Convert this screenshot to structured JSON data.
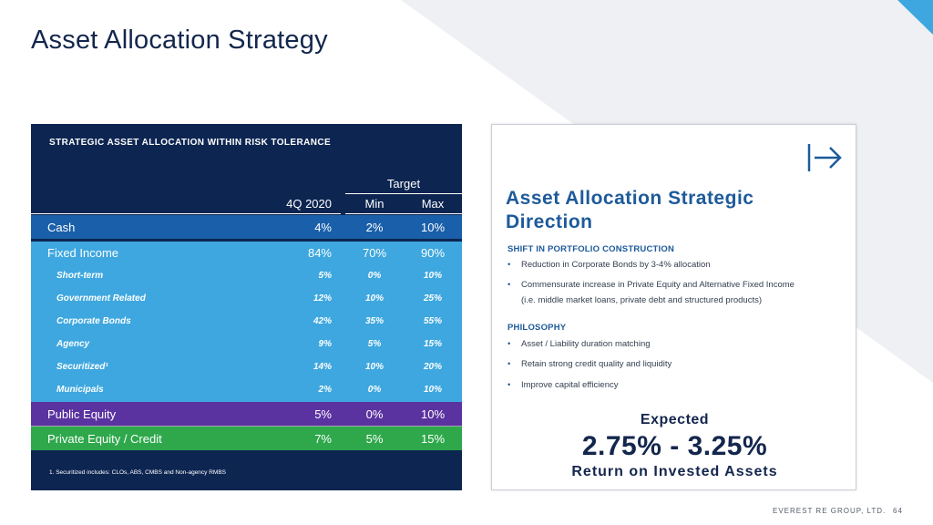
{
  "title": "Asset Allocation Strategy",
  "theme": {
    "navy": "#0d2551",
    "cash": "#1a5faa",
    "fixed_income": "#3ea7df",
    "public_equity": "#5b33a0",
    "private_equity": "#2ea84b",
    "accent": "#1d5a9a"
  },
  "table": {
    "heading": "STRATEGIC ASSET ALLOCATION WITHIN RISK TOLERANCE",
    "target_label": "Target",
    "columns": {
      "current": "4Q 2020",
      "min": "Min",
      "max": "Max"
    },
    "rows": [
      {
        "label": "Cash",
        "current": "4%",
        "min": "2%",
        "max": "10%"
      },
      {
        "label": "Fixed Income",
        "current": "84%",
        "min": "70%",
        "max": "90%"
      },
      {
        "label": "Short-term",
        "current": "5%",
        "min": "0%",
        "max": "10%"
      },
      {
        "label": "Government Related",
        "current": "12%",
        "min": "10%",
        "max": "25%"
      },
      {
        "label": "Corporate Bonds",
        "current": "42%",
        "min": "35%",
        "max": "55%"
      },
      {
        "label": "Agency",
        "current": "9%",
        "min": "5%",
        "max": "15%"
      },
      {
        "label": "Securitized¹",
        "current": "14%",
        "min": "10%",
        "max": "20%"
      },
      {
        "label": "Municipals",
        "current": "2%",
        "min": "0%",
        "max": "10%"
      },
      {
        "label": "Public Equity",
        "current": "5%",
        "min": "0%",
        "max": "10%"
      },
      {
        "label": "Private Equity / Credit",
        "current": "7%",
        "min": "5%",
        "max": "15%"
      }
    ],
    "footnote": "1.   Securitized  includes:  CLOs, ABS, CMBS and Non-agency  RMBS"
  },
  "card": {
    "icon": "arrow-right-bar-icon",
    "title": "Asset Allocation Strategic Direction",
    "sections": [
      {
        "heading": "SHIFT IN PORTFOLIO  CONSTRUCTION",
        "bullets": [
          {
            "text": "Reduction in Corporate Bonds by 3-4% allocation",
            "cont": ""
          },
          {
            "text": "Commensurate  increase  in Private Equity and Alternative  Fixed Income",
            "cont": "(i.e. middle market  loans, private debt and structured products)"
          }
        ]
      },
      {
        "heading": "PHILOSOPHY",
        "bullets": [
          {
            "text": "Asset / Liability duration matching",
            "cont": ""
          },
          {
            "text": "Retain strong credit quality and liquidity",
            "cont": ""
          },
          {
            "text": "Improve capital efficiency",
            "cont": ""
          }
        ]
      }
    ],
    "expected_label": "Expected",
    "expected_value": "2.75%  -  3.25%",
    "expected_sub": "Return  on  Invested  Assets"
  },
  "footer": {
    "company": "EVEREST RE GROUP, LTD.",
    "page": "64"
  }
}
